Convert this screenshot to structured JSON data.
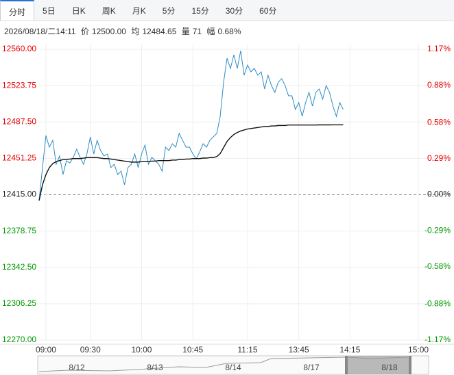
{
  "toolbar": {
    "tabs": [
      "分时",
      "5日",
      "日K",
      "周K",
      "月K",
      "5分",
      "15分",
      "30分",
      "60分"
    ]
  },
  "info": {
    "datetime": "2026/08/18/二14:11",
    "price_label": "价",
    "price": "12500.00",
    "avg_label": "均",
    "avg": "12484.65",
    "vol_label": "量",
    "vol": "71",
    "chg_label": "幅",
    "chg": "0.68%"
  },
  "navigator": {
    "dates": [
      "8/12",
      "8/13",
      "8/14",
      "8/17",
      "8/18"
    ]
  },
  "chart_data": {
    "type": "line",
    "x": [
      0,
      1,
      2,
      3,
      4,
      5,
      6,
      7,
      8,
      9,
      10,
      11,
      12,
      13,
      14,
      15,
      16,
      17,
      18,
      19,
      20,
      21,
      22,
      23,
      24,
      25,
      26,
      27,
      28,
      29,
      30,
      31,
      32,
      33,
      34,
      35,
      36,
      37,
      38,
      39,
      40,
      41,
      42,
      43,
      44,
      45,
      46,
      47,
      48,
      49,
      50,
      51,
      52,
      53,
      54,
      55,
      56,
      57,
      58,
      59,
      60,
      61,
      62,
      63,
      64,
      65,
      66,
      67,
      68,
      69,
      70,
      71,
      72,
      73,
      74,
      75,
      76,
      77,
      78,
      79,
      80,
      81,
      82,
      83,
      84,
      85,
      86,
      87,
      88,
      89
    ],
    "xlim": [
      0,
      114
    ],
    "xticks": [
      {
        "value": 2,
        "label": "09:00"
      },
      {
        "value": 15,
        "label": "09:30"
      },
      {
        "value": 30,
        "label": "10:00"
      },
      {
        "value": 45,
        "label": "10:45"
      },
      {
        "value": 61,
        "label": "11:15"
      },
      {
        "value": 76,
        "label": "13:45"
      },
      {
        "value": 91,
        "label": "14:15"
      },
      {
        "value": 111,
        "label": "15:00"
      }
    ],
    "ylim": [
      12270,
      12560
    ],
    "yticks": [
      {
        "value": 12560,
        "label": "12560.00"
      },
      {
        "value": 12523.75,
        "label": "12523.75"
      },
      {
        "value": 12487.5,
        "label": "12487.50"
      },
      {
        "value": 12451.25,
        "label": "12451.25"
      },
      {
        "value": 12415,
        "label": "12415.00"
      },
      {
        "value": 12378.75,
        "label": "12378.75"
      },
      {
        "value": 12342.5,
        "label": "12342.50"
      },
      {
        "value": 12306.25,
        "label": "12306.25"
      },
      {
        "value": 12270,
        "label": "12270.00"
      }
    ],
    "y2lim": [
      -1.17,
      1.17
    ],
    "y2ticks": [
      {
        "value": 1.17,
        "label": "1.17%"
      },
      {
        "value": 0.88,
        "label": "0.88%"
      },
      {
        "value": 0.58,
        "label": "0.58%"
      },
      {
        "value": 0.29,
        "label": "0.29%"
      },
      {
        "value": 0,
        "label": "0.00%"
      },
      {
        "value": -0.29,
        "label": "-0.29%"
      },
      {
        "value": -0.58,
        "label": "-0.58%"
      },
      {
        "value": -0.88,
        "label": "-0.88%"
      },
      {
        "value": -1.17,
        "label": "-1.17%"
      }
    ],
    "grid": true,
    "up_color": "#e60000",
    "down_color": "#009900",
    "flat_color": "#222222",
    "series": [
      {
        "name": "价",
        "color": "#2b8cc4",
        "values": [
          12409.2,
          12442.0,
          12474.0,
          12462.4,
          12469.2,
          12445.4,
          12453.6,
          12435.1,
          12448.8,
          12446.7,
          12452.2,
          12460.4,
          12452.2,
          12445.4,
          12455.6,
          12472.7,
          12455.6,
          12469.2,
          12459.0,
          12453.6,
          12455.6,
          12442.0,
          12445.4,
          12435.1,
          12438.5,
          12424.9,
          12442.0,
          12445.4,
          12455.6,
          12442.0,
          12455.6,
          12464.5,
          12445.4,
          12452.2,
          12448.8,
          12445.4,
          12438.5,
          12462.4,
          12459.0,
          12465.8,
          12462.4,
          12476.1,
          12469.2,
          12462.4,
          12462.4,
          12455.6,
          12450.8,
          12457.6,
          12465.8,
          12462.4,
          12469.2,
          12472.7,
          12476.1,
          12493.1,
          12527.2,
          12551.1,
          12540.9,
          12554.5,
          12540.9,
          12558.6,
          12534.1,
          12544.3,
          12537.5,
          12540.9,
          12534.1,
          12537.5,
          12520.4,
          12534.1,
          12523.8,
          12517.0,
          12527.2,
          12530.7,
          12523.8,
          12513.6,
          12513.6,
          12500.0,
          12506.8,
          12493.1,
          12506.8,
          12517.0,
          12503.4,
          12517.0,
          12520.4,
          12510.2,
          12523.8,
          12517.0,
          12503.4,
          12493.1,
          12506.8,
          12500.0
        ]
      },
      {
        "name": "均",
        "color": "#111111",
        "values": [
          12409,
          12425,
          12435,
          12442,
          12446,
          12448,
          12449,
          12450,
          12450,
          12450.5,
          12451,
          12451,
          12451,
          12451.5,
          12452,
          12452,
          12452,
          12452,
          12451.5,
          12451,
          12451,
          12450.5,
          12450,
          12449.5,
          12449,
          12448.5,
          12448,
          12447.5,
          12447.5,
          12447.5,
          12448,
          12448,
          12448,
          12448.5,
          12448.5,
          12449,
          12449,
          12449,
          12449,
          12449.5,
          12449.5,
          12450,
          12450,
          12450.5,
          12450.5,
          12451,
          12451,
          12451,
          12451.5,
          12451.5,
          12452,
          12452,
          12453,
          12456,
          12462,
          12468,
          12472,
          12475,
          12477,
          12478.5,
          12479.5,
          12480.5,
          12481,
          12481.5,
          12482,
          12482.5,
          12483,
          12483,
          12483.5,
          12483.5,
          12484,
          12484,
          12484,
          12484.5,
          12484.5,
          12484.5,
          12484.5,
          12484.5,
          12484.5,
          12484.5,
          12484.5,
          12484.5,
          12484.6,
          12484.6,
          12484.6,
          12484.6,
          12484.65,
          12484.65,
          12484.65,
          12484.65
        ]
      }
    ]
  }
}
